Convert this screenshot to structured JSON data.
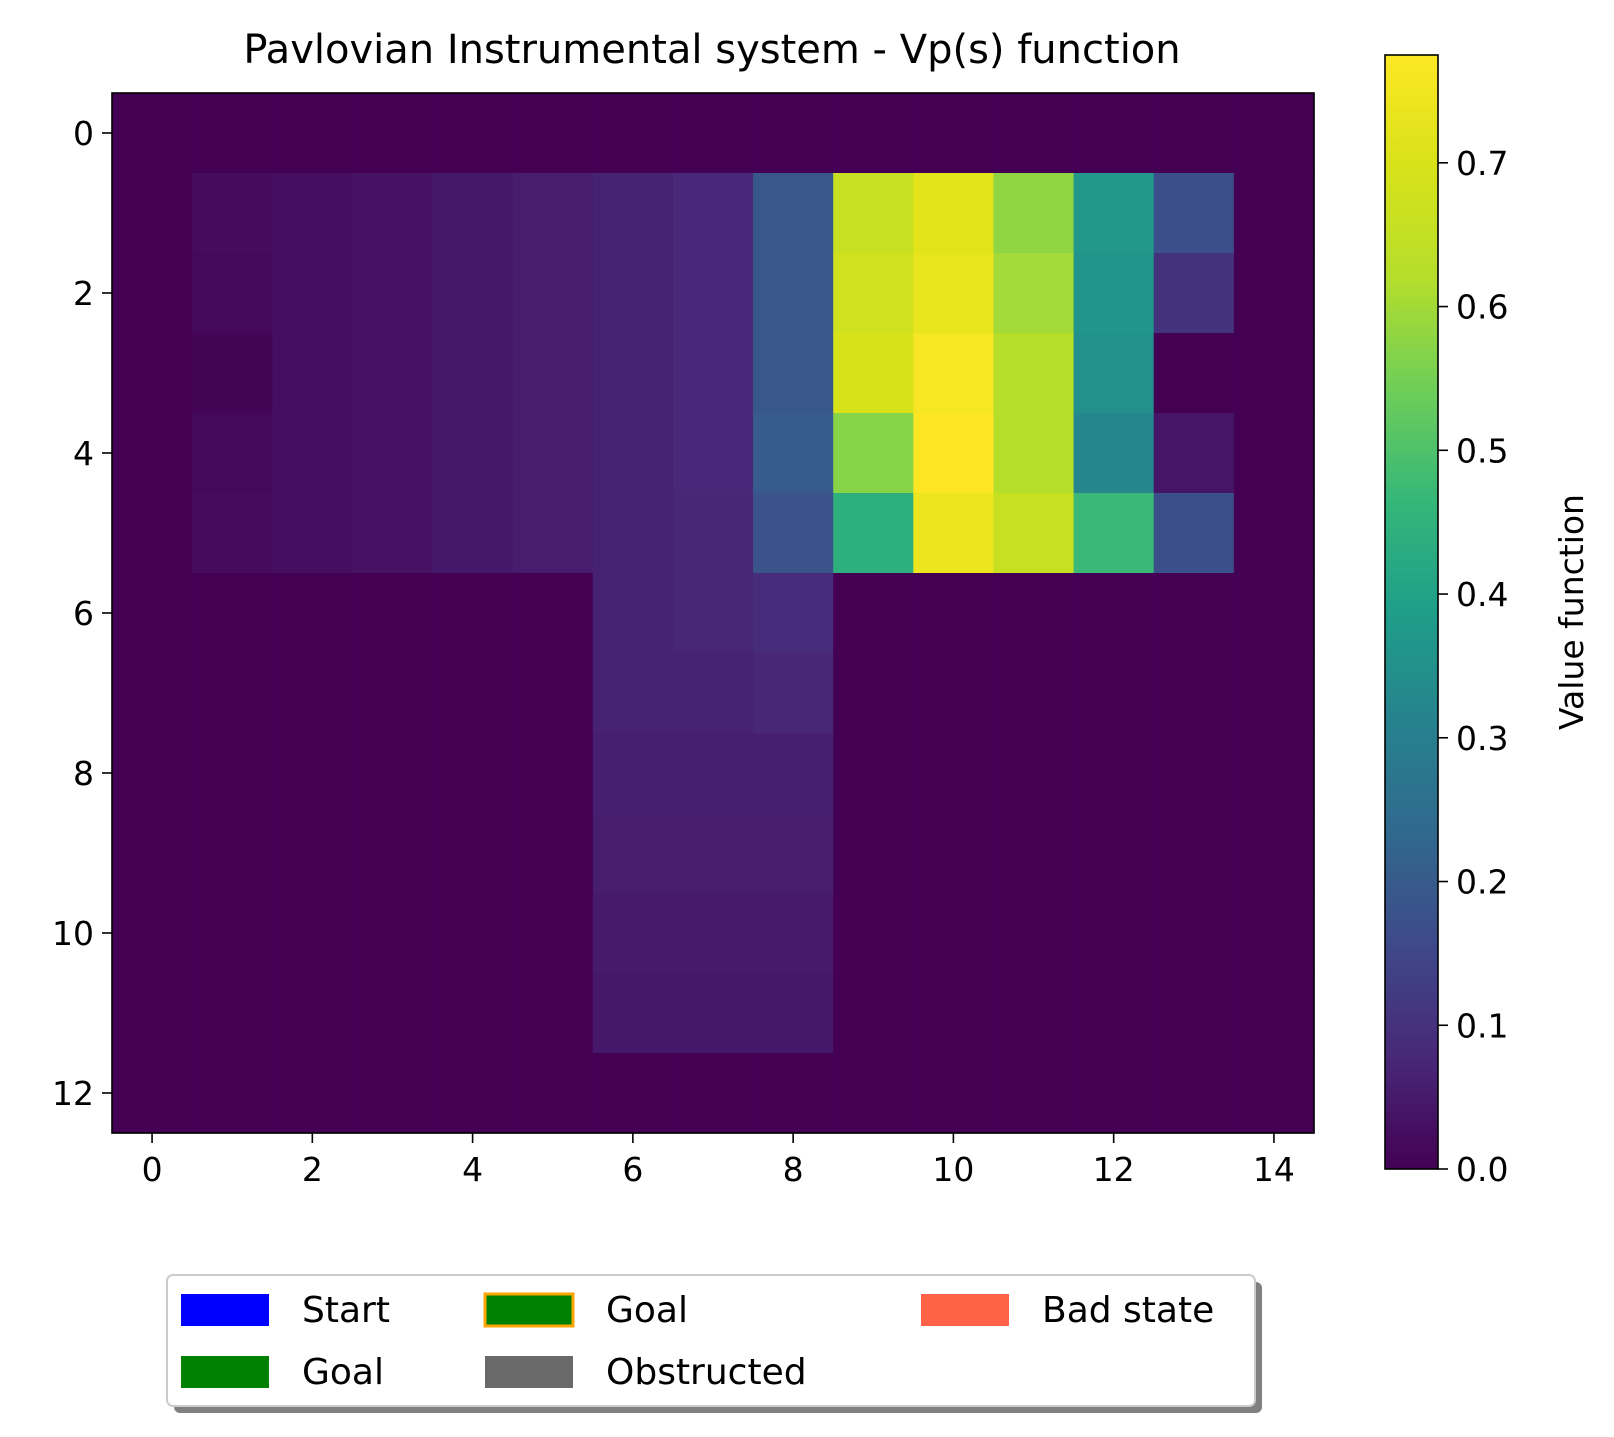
{
  "chart_data": {
    "type": "heatmap",
    "title": "Pavlovian Instrumental system - Vp(s) function",
    "colorbar_label": "Value function",
    "colormap": "viridis",
    "vmin": 0.0,
    "vmax": 0.775,
    "rows": 13,
    "cols": 15,
    "x_ticks": [
      0,
      2,
      4,
      6,
      8,
      10,
      12,
      14
    ],
    "y_ticks": [
      0,
      2,
      4,
      6,
      8,
      10,
      12
    ],
    "colorbar_ticks": [
      "0.0",
      "0.1",
      "0.2",
      "0.3",
      "0.4",
      "0.5",
      "0.6",
      "0.7"
    ],
    "values": [
      [
        0,
        0,
        0,
        0,
        0,
        0,
        0,
        0,
        0,
        0,
        0,
        0,
        0,
        0,
        0
      ],
      [
        0,
        0.02,
        0.025,
        0.035,
        0.045,
        0.055,
        0.065,
        0.08,
        0.19,
        0.66,
        0.72,
        0.58,
        0.37,
        0.17,
        0
      ],
      [
        0,
        0.015,
        0.025,
        0.035,
        0.045,
        0.055,
        0.065,
        0.08,
        0.19,
        0.68,
        0.73,
        0.6,
        0.36,
        0.1,
        0
      ],
      [
        0,
        0.005,
        0.025,
        0.035,
        0.045,
        0.055,
        0.065,
        0.08,
        0.19,
        0.7,
        0.76,
        0.62,
        0.35,
        0,
        0
      ],
      [
        0,
        0.015,
        0.025,
        0.035,
        0.045,
        0.055,
        0.065,
        0.08,
        0.2,
        0.57,
        0.775,
        0.62,
        0.32,
        0.04,
        0
      ],
      [
        0,
        0.02,
        0.025,
        0.035,
        0.045,
        0.055,
        0.065,
        0.075,
        0.18,
        0.44,
        0.74,
        0.66,
        0.47,
        0.17,
        0
      ],
      [
        0,
        0,
        0,
        0,
        0,
        0,
        0.065,
        0.075,
        0.09,
        0,
        0,
        0,
        0,
        0,
        0
      ],
      [
        0,
        0,
        0,
        0,
        0,
        0,
        0.065,
        0.065,
        0.075,
        0,
        0,
        0,
        0,
        0,
        0
      ],
      [
        0,
        0,
        0,
        0,
        0,
        0,
        0.06,
        0.06,
        0.06,
        0,
        0,
        0,
        0,
        0,
        0
      ],
      [
        0,
        0,
        0,
        0,
        0,
        0,
        0.055,
        0.055,
        0.055,
        0,
        0,
        0,
        0,
        0,
        0
      ],
      [
        0,
        0,
        0,
        0,
        0,
        0,
        0.05,
        0.05,
        0.05,
        0,
        0,
        0,
        0,
        0,
        0
      ],
      [
        0,
        0,
        0,
        0,
        0,
        0,
        0.045,
        0.045,
        0.045,
        0,
        0,
        0,
        0,
        0,
        0
      ],
      [
        0,
        0,
        0,
        0,
        0,
        0,
        0,
        0,
        0,
        0,
        0,
        0,
        0,
        0,
        0
      ]
    ],
    "legend": {
      "placement": "lower-center",
      "entries": [
        {
          "label": "Start",
          "color": "#0000ff",
          "edge": "none"
        },
        {
          "label": "Goal",
          "color": "#008000",
          "edge": "none"
        },
        {
          "label": "Goal",
          "color": "#008000",
          "edge": "#ffa500"
        },
        {
          "label": "Obstructed",
          "color": "#696969",
          "edge": "none"
        },
        {
          "label": "Bad state",
          "color": "#ff6347",
          "edge": "none"
        }
      ]
    }
  }
}
